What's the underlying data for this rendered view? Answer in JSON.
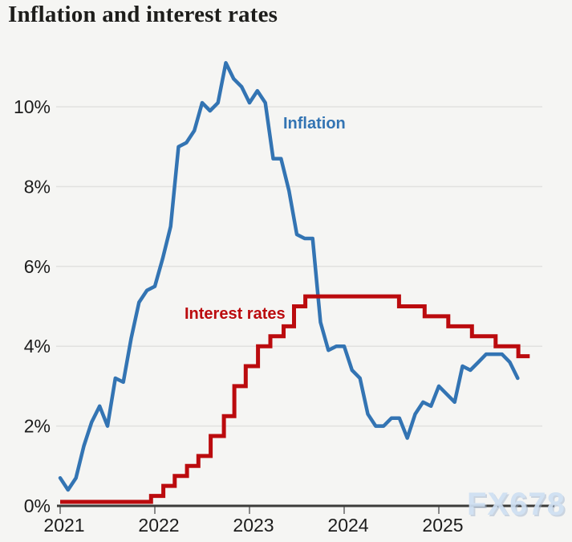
{
  "title": "Inflation and interest rates",
  "watermark": "FX678",
  "labels": {
    "inflation": "Inflation",
    "interest_rates": "Interest rates"
  },
  "colors": {
    "background": "#f5f5f3",
    "inflation_line": "#3374b3",
    "interest_line": "#bb0b0e",
    "gridline": "#e1e1df",
    "axis_line": "#3c3c3a",
    "tick_mark": "#8a8a8a",
    "tick_text": "#1c1c1c",
    "title_text": "#1d1d1b",
    "watermark_text": "#cfe0f2"
  },
  "chart_data": {
    "type": "line",
    "title": "Inflation and interest rates",
    "grid": "horizontal",
    "legend_position": "inline-annotations",
    "x_axis": {
      "tick_labels": [
        "2021",
        "2022",
        "2023",
        "2024",
        "2025"
      ],
      "tick_values": [
        2021,
        2022,
        2023,
        2024,
        2025
      ],
      "range": [
        2021,
        2026.2
      ]
    },
    "y_axis": {
      "tick_labels": [
        "0%",
        "2%",
        "4%",
        "6%",
        "8%",
        "10%"
      ],
      "tick_values": [
        0,
        2,
        4,
        6,
        8,
        10
      ],
      "range": [
        0,
        11.5
      ],
      "unit": "%"
    },
    "series": [
      {
        "name": "Inflation",
        "style": "line",
        "color": "#3374b3",
        "x_start": 2021.0,
        "x_interval_years": 0.0833333,
        "values": [
          0.7,
          0.4,
          0.7,
          1.5,
          2.1,
          2.5,
          2.0,
          3.2,
          3.1,
          4.2,
          5.1,
          5.4,
          5.5,
          6.2,
          7.0,
          9.0,
          9.1,
          9.4,
          10.1,
          9.9,
          10.1,
          11.1,
          10.7,
          10.5,
          10.1,
          10.4,
          10.1,
          8.7,
          8.7,
          7.9,
          6.8,
          6.7,
          6.7,
          4.6,
          3.9,
          4.0,
          4.0,
          3.4,
          3.2,
          2.3,
          2.0,
          2.0,
          2.2,
          2.2,
          1.7,
          2.3,
          2.6,
          2.5,
          3.0,
          2.8,
          2.6,
          3.5,
          3.4,
          3.6,
          3.8,
          3.8,
          3.8,
          3.6,
          3.2
        ]
      },
      {
        "name": "Interest rates",
        "style": "step",
        "color": "#bb0b0e",
        "points": [
          [
            2021.0,
            0.1
          ],
          [
            2021.96,
            0.25
          ],
          [
            2022.09,
            0.5
          ],
          [
            2022.21,
            0.75
          ],
          [
            2022.34,
            1.0
          ],
          [
            2022.46,
            1.25
          ],
          [
            2022.59,
            1.75
          ],
          [
            2022.73,
            2.25
          ],
          [
            2022.84,
            3.0
          ],
          [
            2022.96,
            3.5
          ],
          [
            2023.09,
            4.0
          ],
          [
            2023.22,
            4.25
          ],
          [
            2023.36,
            4.5
          ],
          [
            2023.47,
            5.0
          ],
          [
            2023.59,
            5.25
          ],
          [
            2024.58,
            5.0
          ],
          [
            2024.85,
            4.75
          ],
          [
            2025.1,
            4.5
          ],
          [
            2025.35,
            4.25
          ],
          [
            2025.6,
            4.0
          ],
          [
            2025.84,
            3.75
          ]
        ],
        "x_end": 2025.96
      }
    ]
  }
}
